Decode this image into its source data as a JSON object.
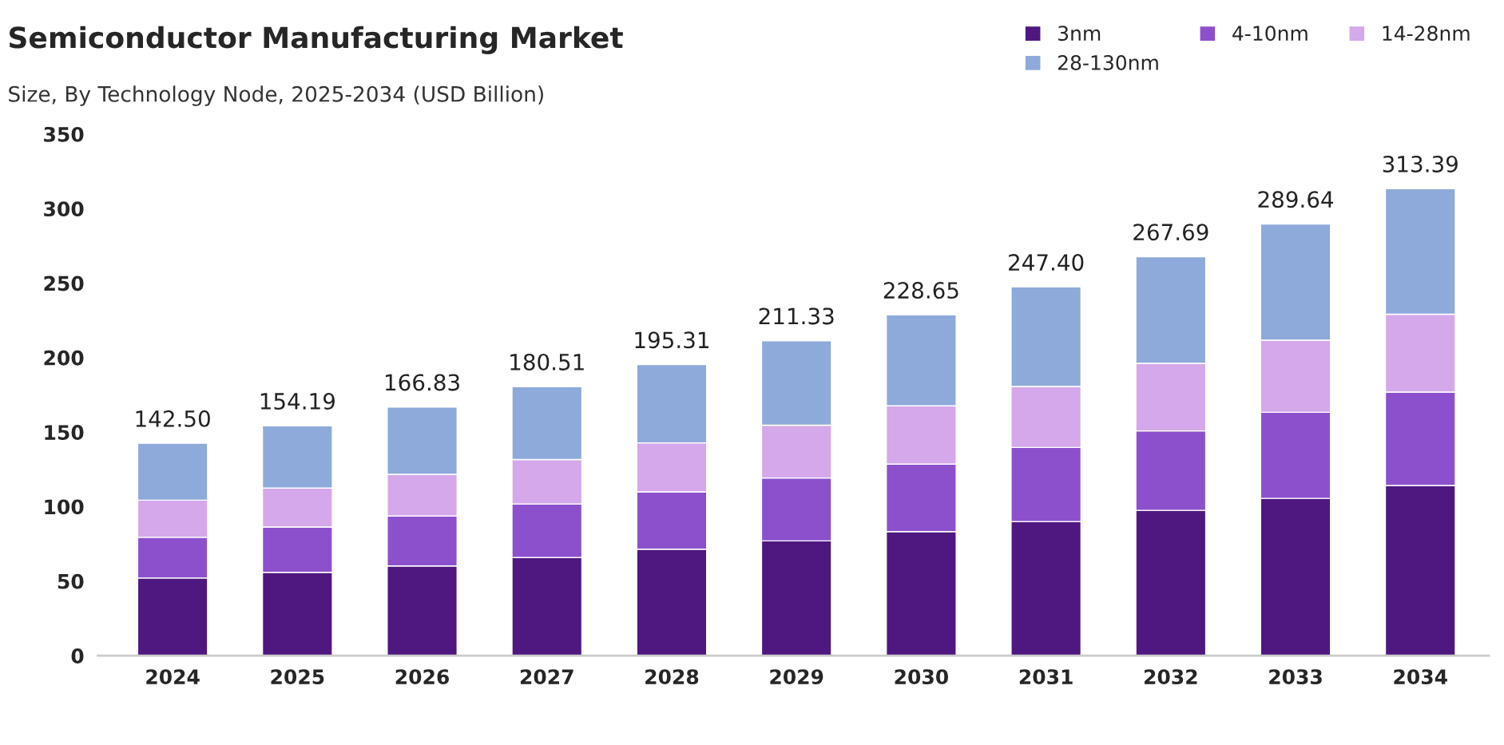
{
  "chart_data": {
    "type": "bar",
    "title": "Semiconductor Manufacturing Market",
    "subtitle": "Size, By Technology Node, 2025-2034 (USD Billion)",
    "categories": [
      "2024",
      "2025",
      "2026",
      "2027",
      "2028",
      "2029",
      "2030",
      "2031",
      "2032",
      "2033",
      "2034"
    ],
    "stacked": true,
    "series": [
      {
        "name": "3nm",
        "color": "#4f1780",
        "values": [
          52.1,
          55.9,
          60.2,
          65.8,
          71.4,
          77.0,
          83.2,
          90.0,
          97.5,
          105.5,
          114.2
        ]
      },
      {
        "name": "4-10nm",
        "color": "#8c50cc",
        "values": [
          27.3,
          30.4,
          33.5,
          36.0,
          38.5,
          42.2,
          45.3,
          49.7,
          53.3,
          57.8,
          62.7
        ]
      },
      {
        "name": "14-28nm",
        "color": "#d4a8ea",
        "values": [
          24.9,
          26.1,
          28.0,
          29.8,
          32.9,
          35.4,
          39.1,
          40.9,
          45.4,
          48.4,
          52.2
        ]
      },
      {
        "name": "28-130nm",
        "color": "#8eaadb",
        "values": [
          38.2,
          41.79,
          45.13,
          48.91,
          52.51,
          56.73,
          61.05,
          66.8,
          71.49,
          77.94,
          84.29
        ]
      }
    ],
    "totals": [
      "142.50",
      "154.19",
      "166.83",
      "180.51",
      "195.31",
      "211.33",
      "228.65",
      "247.40",
      "267.69",
      "289.64",
      "313.39"
    ],
    "ylim": [
      0,
      350
    ],
    "yticks": [
      0,
      50,
      100,
      150,
      200,
      250,
      300,
      350
    ],
    "grid": false,
    "legend": "top right"
  }
}
